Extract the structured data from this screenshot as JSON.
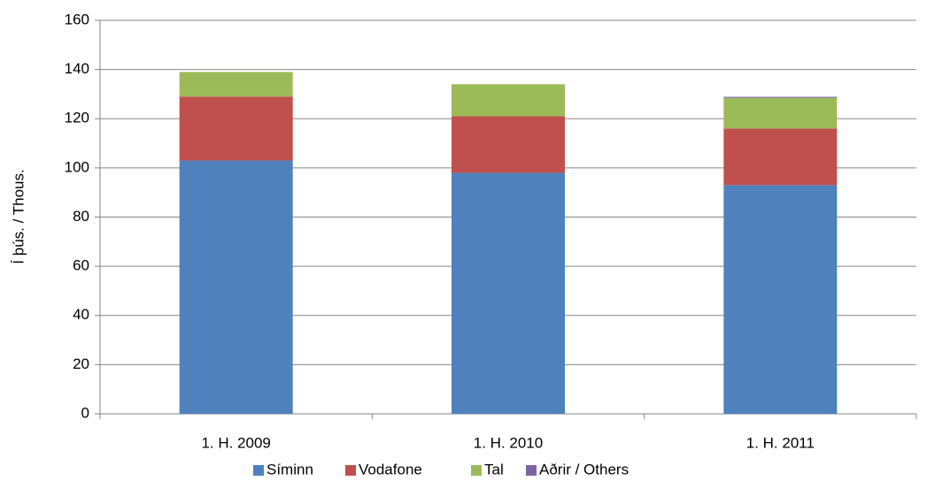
{
  "chart_data": {
    "type": "stacked_bar",
    "y_label": "Í þús. / Thous.",
    "categories": [
      "1. H. 2009",
      "1. H. 2010",
      "1. H. 2011"
    ],
    "series": [
      {
        "name": "Síminn",
        "color": "#4f81bd",
        "values": [
          103,
          98,
          93
        ]
      },
      {
        "name": "Vodafone",
        "color": "#c0504d",
        "values": [
          26,
          23,
          23
        ]
      },
      {
        "name": "Tal",
        "color": "#9bbb59",
        "values": [
          10,
          13,
          12.5
        ]
      },
      {
        "name": "Aðrir / Others",
        "color": "#8064a2",
        "values": [
          0,
          0,
          0.4
        ]
      }
    ],
    "ylim": [
      0,
      160
    ],
    "yticks": [
      0,
      20,
      40,
      60,
      80,
      100,
      120,
      140,
      160
    ],
    "grid": true,
    "legend": "bottom"
  }
}
